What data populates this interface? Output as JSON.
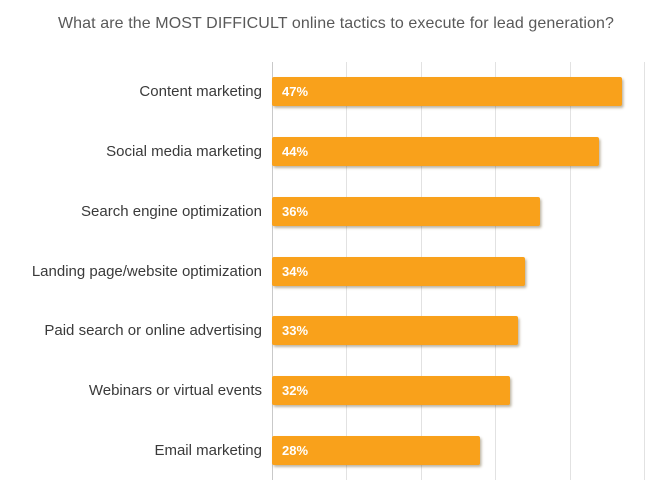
{
  "chart_data": {
    "type": "bar",
    "orientation": "horizontal",
    "title": "What are the MOST DIFFICULT online tactics to execute for lead generation?",
    "categories": [
      "Content marketing",
      "Social media marketing",
      "Search engine optimization",
      "Landing page/website optimization",
      "Paid search or online advertising",
      "Webinars or virtual events",
      "Email marketing"
    ],
    "values": [
      47,
      44,
      36,
      34,
      33,
      32,
      28
    ],
    "value_labels": [
      "47%",
      "44%",
      "36%",
      "34%",
      "33%",
      "32%",
      "28%"
    ],
    "xlabel": "",
    "ylabel": "",
    "xlim": [
      0,
      50
    ],
    "grid_step": 10,
    "grid": "vertical",
    "legend": "none",
    "colors": {
      "bar": "#f9a11b",
      "bar_value_text": "#ffffff",
      "title_text": "#595959",
      "category_text": "#3a3a3a",
      "gridline": "#e2e2e2",
      "axis_line": "#c9c9c9",
      "background": "#ffffff"
    }
  }
}
